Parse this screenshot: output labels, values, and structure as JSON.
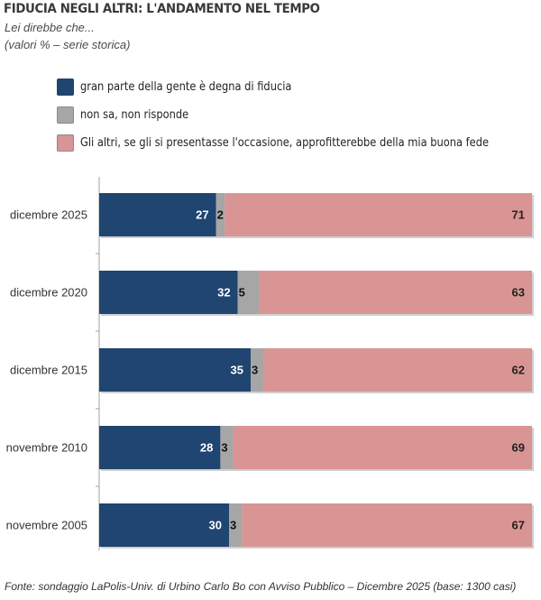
{
  "header": {
    "title": "FIDUCIA NEGLI ALTRI: L'ANDAMENTO NEL TEMPO",
    "subtitle1": "Lei direbbe che...",
    "subtitle2": "(valori % – serie storica)"
  },
  "legend": [
    {
      "label": "gran parte della gente è degna di fiducia",
      "color": "#1f4570"
    },
    {
      "label": "non sa, non risponde",
      "color": "#a6a6a6"
    },
    {
      "label": "Gli altri, se gli si presentasse l'occasione, approfitterebbe della mia buona fede",
      "color": "#d99594"
    }
  ],
  "source": "Fonte: sondaggio LaPolis-Univ. di Urbino Carlo Bo con Avviso Pubblico – Dicembre 2025 (base: 1300 casi)",
  "chart_data": {
    "type": "bar",
    "orientation": "horizontal",
    "stacked": true,
    "title": "FIDUCIA NEGLI ALTRI: L'ANDAMENTO NEL TEMPO",
    "subtitle": "Lei direbbe che... (valori % – serie storica)",
    "xlabel": "",
    "ylabel": "",
    "xlim": [
      0,
      100
    ],
    "grid": false,
    "legend_position": "top",
    "categories": [
      "dicembre 2025",
      "dicembre 2020",
      "dicembre 2015",
      "novembre 2010",
      "novembre 2005"
    ],
    "series": [
      {
        "name": "gran parte della gente è degna di fiducia",
        "color": "#1f4570",
        "label_color": "#ffffff",
        "values": [
          27,
          32,
          35,
          28,
          30
        ]
      },
      {
        "name": "non sa, non risponde",
        "color": "#a6a6a6",
        "label_color": "#111111",
        "values": [
          2,
          5,
          3,
          3,
          3
        ]
      },
      {
        "name": "Gli altri, se gli si presentasse l'occasione, approfitterebbe della mia buona fede",
        "color": "#d99594",
        "label_color": "#222222",
        "values": [
          71,
          63,
          62,
          69,
          67
        ]
      }
    ]
  }
}
